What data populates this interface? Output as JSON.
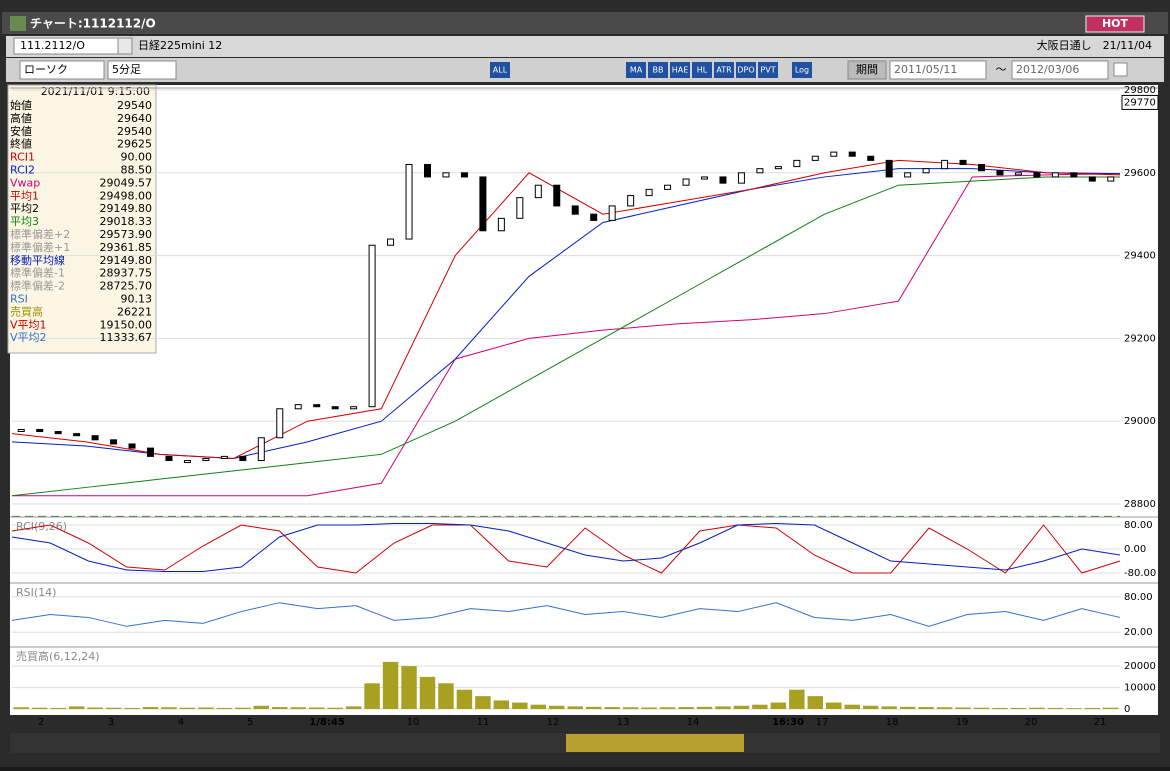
{
  "header": {
    "title": "チャート:1112112/O",
    "hot": "HOT",
    "symbol": "111.2112/O",
    "instrument": "日経225mini 12",
    "market": "大阪日通し　21/11/04"
  },
  "toolbar": {
    "chart_type": "ローソク",
    "interval": "5分足",
    "period": "期間",
    "date_from": "2011/05/11",
    "separator": "〜",
    "date_to": "2012/03/06",
    "icons": [
      "ALL",
      "MA",
      "BB",
      "HAE",
      "HL",
      "ATR",
      "DPO",
      "PVT",
      "Log"
    ]
  },
  "info": {
    "date": "2021/11/01  9:15:00",
    "rows": [
      {
        "label": "始値",
        "value": "29540",
        "color": "#000"
      },
      {
        "label": "高値",
        "value": "29640",
        "color": "#000"
      },
      {
        "label": "安値",
        "value": "29540",
        "color": "#000"
      },
      {
        "label": "終値",
        "value": "29625",
        "color": "#000"
      },
      {
        "label": "RCI1",
        "value": "90.00",
        "color": "#d00000"
      },
      {
        "label": "RCI2",
        "value": "88.50",
        "color": "#0020c0"
      },
      {
        "label": "Vwap",
        "value": "29049.57",
        "color": "#d0007a"
      },
      {
        "label": "平均1",
        "value": "29498.00",
        "color": "#d00000"
      },
      {
        "label": "平均2",
        "value": "29149.80",
        "color": "#000"
      },
      {
        "label": "平均3",
        "value": "29018.33",
        "color": "#108010"
      },
      {
        "label": "標準偏差+2",
        "value": "29573.90",
        "color": "#999"
      },
      {
        "label": "標準偏差+1",
        "value": "29361.85",
        "color": "#999"
      },
      {
        "label": "移動平均線",
        "value": "29149.80",
        "color": "#0020c0"
      },
      {
        "label": "標準偏差-1",
        "value": "28937.75",
        "color": "#999"
      },
      {
        "label": "標準偏差-2",
        "value": "28725.70",
        "color": "#999"
      },
      {
        "label": "RSI",
        "value": "90.13",
        "color": "#3070d0"
      },
      {
        "label": "売買高",
        "value": "26221",
        "color": "#a09000"
      },
      {
        "label": "V平均1",
        "value": "19150.00",
        "color": "#d00000"
      },
      {
        "label": "V平均2",
        "value": "11333.67",
        "color": "#3070d0"
      }
    ]
  },
  "price": {
    "ylim": [
      28800,
      29800
    ],
    "yticks": [
      28800,
      29000,
      29200,
      29400,
      29600,
      29800
    ],
    "current": 29770,
    "level": 28770,
    "close": [
      28980,
      28975,
      28970,
      28965,
      28955,
      28945,
      28935,
      28915,
      28905,
      28905,
      28910,
      28915,
      28905,
      28960,
      29030,
      29040,
      29035,
      29030,
      29035,
      29425,
      29440,
      29620,
      29590,
      29600,
      29590,
      29460,
      29490,
      29540,
      29570,
      29520,
      29500,
      29485,
      29520,
      29545,
      29560,
      29570,
      29585,
      29590,
      29575,
      29600,
      29610,
      29615,
      29630,
      29640,
      29650,
      29640,
      29630,
      29590,
      29600,
      29610,
      29630,
      29620,
      29605,
      29595,
      29600,
      29590,
      29600,
      29590,
      29580,
      29590
    ],
    "lines": [
      {
        "name": "平均1",
        "color": "#d00000",
        "values": [
          28970,
          28950,
          28920,
          28910,
          29000,
          29030,
          29400,
          29600,
          29500,
          29530,
          29560,
          29600,
          29630,
          29620,
          29600,
          29595
        ]
      },
      {
        "name": "移動平均線",
        "color": "#0020c0",
        "values": [
          28950,
          28940,
          28920,
          28910,
          28950,
          29000,
          29150,
          29350,
          29480,
          29520,
          29560,
          29590,
          29610,
          29610,
          29600,
          29598
        ]
      },
      {
        "name": "平均3",
        "color": "#108010",
        "values": [
          28820,
          28840,
          28860,
          28880,
          28900,
          28920,
          29000,
          29100,
          29200,
          29300,
          29400,
          29500,
          29570,
          29580,
          29590,
          29590
        ]
      },
      {
        "name": "Vwap",
        "color": "#d0007a",
        "values": [
          28820,
          28820,
          28820,
          28820,
          28820,
          28850,
          29150,
          29200,
          29220,
          29235,
          29245,
          29260,
          29290,
          29590,
          29595,
          29598
        ]
      }
    ]
  },
  "rci": {
    "label": "RCI(9,26)",
    "ylim": [
      -100,
      100
    ],
    "yticks": [
      {
        "value": 80,
        "label": "80.00"
      },
      {
        "value": 0,
        "label": "0.00"
      },
      {
        "value": -80,
        "label": "-80.00"
      }
    ],
    "series": [
      {
        "color": "#d00000",
        "values": [
          60,
          80,
          20,
          -60,
          -70,
          10,
          80,
          60,
          -60,
          -80,
          20,
          80,
          80,
          -40,
          -60,
          70,
          -20,
          -80,
          60,
          80,
          70,
          -20,
          -80,
          -80,
          70,
          0,
          -80,
          80,
          -80,
          -40
        ]
      },
      {
        "color": "#0020c0",
        "values": [
          40,
          20,
          -40,
          -70,
          -75,
          -75,
          -60,
          40,
          80,
          80,
          85,
          85,
          80,
          60,
          20,
          -20,
          -40,
          -30,
          20,
          80,
          85,
          80,
          20,
          -40,
          -50,
          -60,
          -70,
          -40,
          0,
          -20
        ]
      }
    ]
  },
  "rsi": {
    "label": "RSI(14)",
    "ylim": [
      0,
      100
    ],
    "yticks": [
      {
        "value": 80,
        "label": "80.00"
      },
      {
        "value": 20,
        "label": "20.00"
      }
    ],
    "series": [
      {
        "color": "#3070d0",
        "values": [
          40,
          50,
          45,
          30,
          40,
          35,
          55,
          70,
          60,
          65,
          40,
          45,
          60,
          55,
          65,
          50,
          55,
          45,
          60,
          55,
          70,
          45,
          40,
          50,
          30,
          50,
          55,
          40,
          60,
          45
        ]
      }
    ]
  },
  "volume": {
    "label": "売買高(6,12,24)",
    "ylim": [
      0,
      28000
    ],
    "yticks": [
      0,
      10000,
      20000
    ],
    "color": "#a8a020",
    "values": [
      800,
      600,
      500,
      1200,
      700,
      600,
      500,
      900,
      800,
      600,
      700,
      500,
      600,
      1500,
      900,
      800,
      700,
      600,
      1200,
      12000,
      22000,
      20000,
      15000,
      12000,
      9000,
      6000,
      4000,
      3000,
      2000,
      1500,
      1200,
      1000,
      900,
      800,
      700,
      800,
      900,
      1000,
      1200,
      1500,
      2000,
      3000,
      9000,
      6000,
      3000,
      2000,
      1500,
      1200,
      1000,
      900,
      800,
      700,
      600,
      500,
      500,
      600,
      500,
      400,
      500,
      600
    ]
  },
  "x_labels": [
    "2",
    "3",
    "4",
    "5",
    "1/8:45",
    "10",
    "11",
    "12",
    "13",
    "14",
    "16:30",
    "17",
    "18",
    "19",
    "20",
    "21"
  ]
}
